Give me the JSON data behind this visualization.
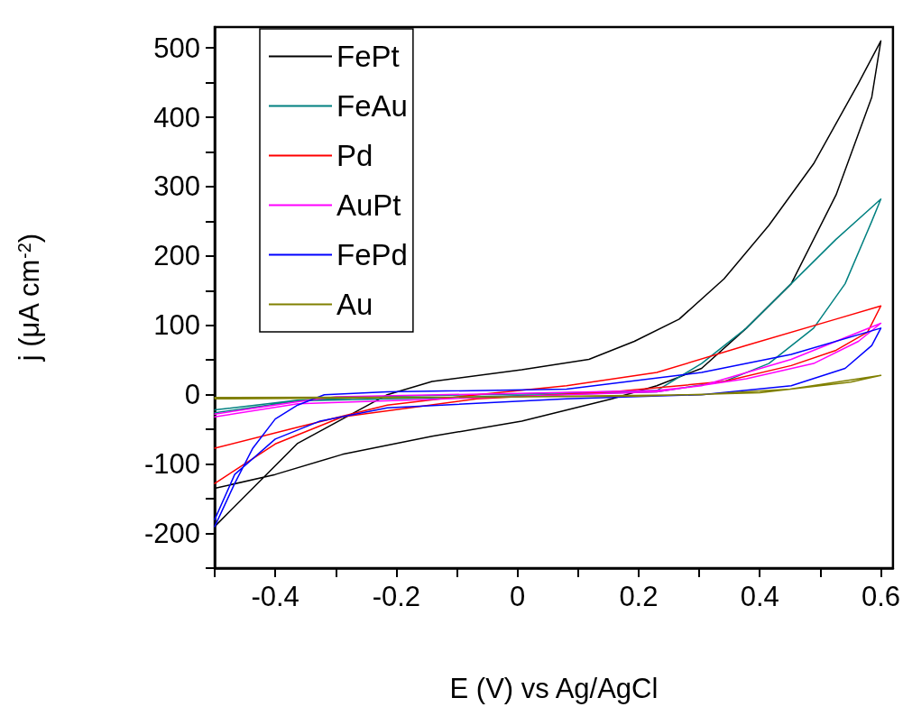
{
  "chart_data": {
    "type": "line",
    "xlabel": "E (V) vs Ag/AgCl",
    "ylabel": "j (μA cm$^{-2}$)",
    "xlim": [
      -0.5,
      0.62
    ],
    "xticks": [
      {
        "value": -0.5,
        "label": null
      },
      -0.4,
      {
        "value": -0.3,
        "label": null
      },
      -0.2,
      {
        "value": -0.1,
        "label": null
      },
      0.0,
      {
        "value": 0.1,
        "label": null
      },
      0.2,
      {
        "value": 0.3,
        "label": null
      },
      0.4,
      {
        "value": 0.5,
        "label": null
      },
      0.6
    ],
    "ylim": [
      -250,
      530
    ],
    "yticks": [
      {
        "value": -250,
        "label": null
      },
      -200,
      {
        "value": -150,
        "label": null
      },
      -100,
      {
        "value": -50,
        "label": null
      },
      0,
      {
        "value": 50,
        "label": null
      },
      100,
      {
        "value": 150,
        "label": null
      },
      200,
      {
        "value": 250,
        "label": null
      },
      300,
      {
        "value": 350,
        "label": null
      },
      400,
      {
        "value": 450,
        "label": null
      },
      500
    ],
    "grid": false,
    "legend": "top left",
    "marker": "none",
    "line_style": "solid",
    "series": [
      {
        "name": "FePt",
        "color": "#000000",
        "x": [
          -0.5,
          -0.363,
          -0.215,
          -0.141,
          0.007,
          0.118,
          0.193,
          0.267,
          0.341,
          0.415,
          0.489,
          0.563,
          0.6,
          0.585,
          0.526,
          0.452,
          0.378,
          0.304,
          0.23,
          0.156,
          0.007,
          -0.141,
          -0.289,
          -0.4,
          -0.5
        ],
        "values": [
          -190,
          -70,
          0,
          19,
          36,
          51,
          77,
          109,
          167,
          244,
          333,
          449,
          510,
          429,
          288,
          160,
          96,
          38,
          13,
          -6,
          -38,
          -60,
          -86,
          -115,
          -135
        ]
      },
      {
        "name": "FeAu",
        "color": "#008080",
        "x": [
          -0.5,
          -0.363,
          -0.2,
          0.0,
          0.23,
          0.304,
          0.378,
          0.452,
          0.526,
          0.6,
          0.585,
          0.541,
          0.489,
          0.415,
          0.341,
          0.23,
          -0.067,
          -0.363,
          -0.5
        ],
        "values": [
          -22,
          -8,
          -2,
          1,
          6,
          45,
          96,
          160,
          224,
          282,
          250,
          160,
          96,
          45,
          19,
          4,
          -3,
          -9,
          -26
        ]
      },
      {
        "name": "Pd",
        "color": "#ff0000",
        "x": [
          -0.5,
          -0.363,
          -0.215,
          -0.067,
          0.081,
          0.23,
          0.378,
          0.526,
          0.6,
          0.578,
          0.526,
          0.452,
          0.341,
          0.156,
          -0.067,
          -0.289,
          -0.4,
          -0.5
        ],
        "values": [
          -77,
          -47,
          -15,
          0,
          13,
          32,
          71,
          109,
          128,
          90,
          64,
          42,
          19,
          4,
          -6,
          -32,
          -71,
          -128
        ]
      },
      {
        "name": "AuPt",
        "color": "#ff00ff",
        "x": [
          -0.5,
          -0.363,
          -0.3,
          0.0,
          0.23,
          0.304,
          0.452,
          0.6,
          0.563,
          0.489,
          0.378,
          0.23,
          -0.363,
          -0.5
        ],
        "values": [
          -28,
          -10,
          -3,
          2,
          6,
          13,
          51,
          103,
          77,
          45,
          23,
          4,
          -13,
          -32
        ]
      },
      {
        "name": "FePd",
        "color": "#0000ff",
        "x": [
          -0.5,
          -0.467,
          -0.437,
          -0.4,
          -0.363,
          -0.319,
          -0.215,
          0.081,
          0.304,
          0.452,
          0.6,
          0.585,
          0.541,
          0.452,
          0.304,
          0.081,
          -0.215,
          -0.326,
          -0.4,
          -0.467,
          -0.5
        ],
        "values": [
          -190,
          -128,
          -77,
          -35,
          -15,
          0,
          4,
          8,
          32,
          58,
          96,
          71,
          38,
          13,
          0,
          -6,
          -19,
          -38,
          -64,
          -115,
          -180
        ]
      },
      {
        "name": "Au",
        "color": "#808000",
        "x": [
          -0.5,
          0.0,
          0.3,
          0.45,
          0.6,
          0.55,
          0.4,
          0.2,
          -0.5
        ],
        "values": [
          -4,
          -3,
          0,
          8,
          28,
          18,
          3,
          -2,
          -6
        ]
      }
    ]
  }
}
